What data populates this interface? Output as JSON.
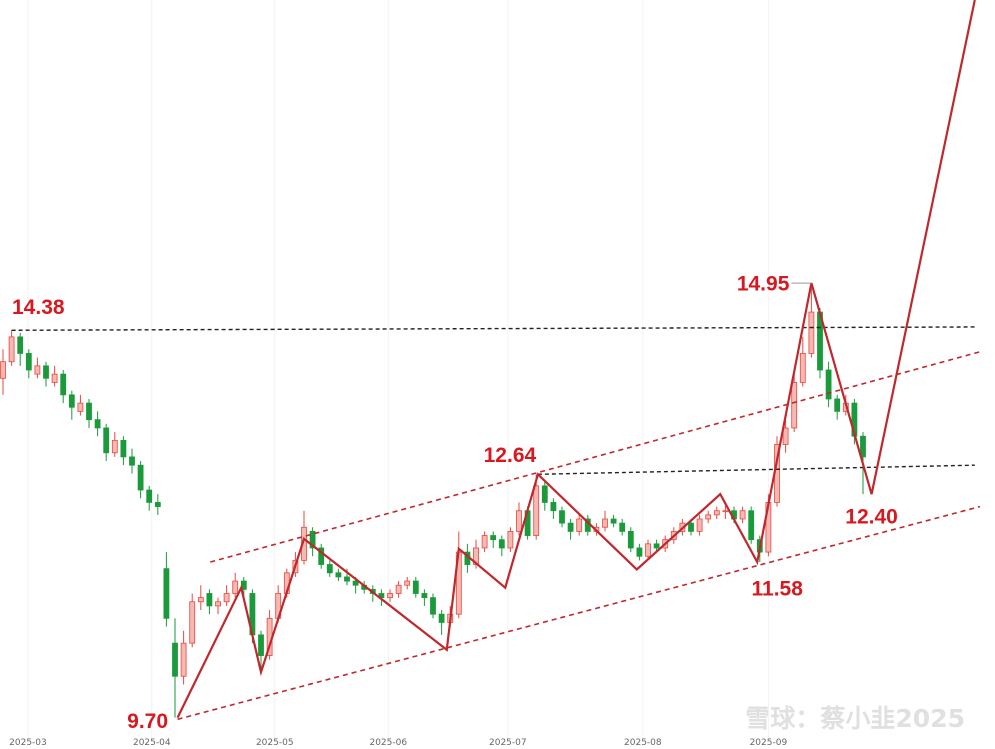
{
  "chart_data": {
    "type": "candlestick",
    "xlim": [
      -0.35,
      115.35
    ],
    "ylim": [
      9.43,
      18.37
    ],
    "xticks": [
      {
        "value": 2.9,
        "label": "2025-03"
      },
      {
        "value": 17.3,
        "label": "2025-04"
      },
      {
        "value": 31.6,
        "label": "2025-05"
      },
      {
        "value": 44.8,
        "label": "2025-06"
      },
      {
        "value": 58.7,
        "label": "2025-07"
      },
      {
        "value": 74.4,
        "label": "2025-08"
      },
      {
        "value": 89,
        "label": "2025-09"
      }
    ],
    "up_color": "#e8483f",
    "down_color": "#1a9a3a",
    "candles": [
      [
        13.8,
        14.15,
        13.6,
        14.0
      ],
      [
        14.0,
        14.38,
        13.95,
        14.3
      ],
      [
        14.3,
        14.35,
        13.95,
        14.1
      ],
      [
        14.1,
        14.15,
        13.8,
        13.9
      ],
      [
        13.85,
        14.05,
        13.8,
        13.95
      ],
      [
        13.95,
        14.0,
        13.7,
        13.8
      ],
      [
        13.75,
        13.95,
        13.7,
        13.85
      ],
      [
        13.85,
        13.9,
        13.5,
        13.6
      ],
      [
        13.6,
        13.65,
        13.3,
        13.45
      ],
      [
        13.4,
        13.6,
        13.35,
        13.5
      ],
      [
        13.5,
        13.55,
        13.2,
        13.3
      ],
      [
        13.3,
        13.4,
        13.1,
        13.2
      ],
      [
        13.2,
        13.25,
        12.8,
        12.9
      ],
      [
        12.9,
        13.15,
        12.85,
        13.05
      ],
      [
        13.05,
        13.1,
        12.75,
        12.85
      ],
      [
        12.85,
        12.95,
        12.65,
        12.75
      ],
      [
        12.75,
        12.8,
        12.35,
        12.45
      ],
      [
        12.45,
        12.5,
        12.2,
        12.3
      ],
      [
        12.3,
        12.4,
        12.15,
        12.25
      ],
      [
        11.5,
        11.7,
        10.8,
        10.9
      ],
      [
        10.6,
        10.9,
        9.7,
        10.2
      ],
      [
        10.2,
        10.75,
        10.1,
        10.6
      ],
      [
        10.6,
        11.2,
        10.55,
        11.1
      ],
      [
        11.1,
        11.3,
        11.0,
        11.15
      ],
      [
        11.2,
        11.25,
        10.95,
        11.05
      ],
      [
        11.05,
        11.15,
        10.95,
        11.1
      ],
      [
        11.1,
        11.3,
        11.05,
        11.2
      ],
      [
        11.2,
        11.45,
        11.15,
        11.35
      ],
      [
        11.35,
        11.4,
        11.15,
        11.25
      ],
      [
        11.2,
        11.25,
        10.6,
        10.7
      ],
      [
        10.7,
        10.75,
        10.3,
        10.45
      ],
      [
        10.45,
        11.0,
        10.4,
        10.9
      ],
      [
        10.9,
        11.3,
        10.85,
        11.2
      ],
      [
        11.2,
        11.5,
        11.15,
        11.45
      ],
      [
        11.45,
        11.7,
        11.4,
        11.6
      ],
      [
        11.6,
        12.2,
        11.55,
        12.0
      ],
      [
        11.95,
        12.0,
        11.65,
        11.75
      ],
      [
        11.75,
        11.8,
        11.5,
        11.55
      ],
      [
        11.55,
        11.6,
        11.4,
        11.45
      ],
      [
        11.45,
        11.5,
        11.35,
        11.4
      ],
      [
        11.4,
        11.5,
        11.3,
        11.35
      ],
      [
        11.35,
        11.4,
        11.2,
        11.3
      ],
      [
        11.3,
        11.35,
        11.2,
        11.25
      ],
      [
        11.25,
        11.3,
        11.1,
        11.2
      ],
      [
        11.2,
        11.25,
        11.05,
        11.15
      ],
      [
        11.15,
        11.25,
        11.1,
        11.2
      ],
      [
        11.2,
        11.35,
        11.15,
        11.3
      ],
      [
        11.3,
        11.4,
        11.25,
        11.35
      ],
      [
        11.35,
        11.4,
        11.15,
        11.2
      ],
      [
        11.2,
        11.25,
        11.05,
        11.15
      ],
      [
        11.15,
        11.2,
        10.9,
        10.95
      ],
      [
        10.95,
        11.0,
        10.7,
        10.85
      ],
      [
        10.85,
        11.05,
        10.8,
        10.95
      ],
      [
        10.95,
        11.95,
        10.9,
        11.7
      ],
      [
        11.7,
        11.8,
        11.45,
        11.55
      ],
      [
        11.55,
        11.85,
        11.5,
        11.75
      ],
      [
        11.75,
        11.95,
        11.7,
        11.9
      ],
      [
        11.9,
        11.95,
        11.75,
        11.85
      ],
      [
        11.85,
        11.9,
        11.65,
        11.75
      ],
      [
        11.75,
        12.0,
        11.7,
        11.95
      ],
      [
        11.95,
        12.3,
        11.9,
        12.2
      ],
      [
        12.2,
        12.25,
        11.85,
        11.9
      ],
      [
        11.9,
        12.64,
        11.85,
        12.5
      ],
      [
        12.5,
        12.55,
        12.2,
        12.3
      ],
      [
        12.3,
        12.35,
        12.1,
        12.2
      ],
      [
        12.2,
        12.25,
        12.0,
        12.05
      ],
      [
        12.05,
        12.1,
        11.85,
        11.95
      ],
      [
        11.95,
        12.15,
        11.9,
        12.1
      ],
      [
        12.1,
        12.15,
        11.9,
        11.95
      ],
      [
        11.95,
        12.05,
        11.9,
        12.0
      ],
      [
        12.0,
        12.2,
        11.95,
        12.1
      ],
      [
        12.1,
        12.15,
        12.0,
        12.05
      ],
      [
        12.05,
        12.1,
        11.9,
        11.95
      ],
      [
        11.95,
        12.0,
        11.7,
        11.75
      ],
      [
        11.75,
        11.8,
        11.6,
        11.65
      ],
      [
        11.65,
        11.85,
        11.6,
        11.8
      ],
      [
        11.8,
        11.85,
        11.7,
        11.75
      ],
      [
        11.75,
        11.9,
        11.7,
        11.85
      ],
      [
        11.85,
        12.0,
        11.8,
        11.95
      ],
      [
        11.95,
        12.1,
        11.9,
        12.05
      ],
      [
        12.05,
        12.1,
        11.9,
        11.95
      ],
      [
        11.95,
        12.15,
        11.9,
        12.1
      ],
      [
        12.1,
        12.2,
        12.05,
        12.15
      ],
      [
        12.15,
        12.25,
        12.1,
        12.2
      ],
      [
        12.2,
        12.3,
        12.1,
        12.2
      ],
      [
        12.2,
        12.25,
        12.05,
        12.1
      ],
      [
        12.1,
        12.25,
        12.05,
        12.2
      ],
      [
        12.2,
        12.25,
        11.8,
        11.85
      ],
      [
        11.85,
        11.9,
        11.58,
        11.7
      ],
      [
        11.7,
        12.4,
        11.65,
        12.3
      ],
      [
        12.3,
        13.1,
        12.25,
        13.0
      ],
      [
        13.0,
        13.3,
        12.9,
        13.2
      ],
      [
        13.2,
        13.85,
        13.15,
        13.75
      ],
      [
        13.75,
        14.3,
        13.7,
        14.1
      ],
      [
        14.1,
        14.95,
        14.05,
        14.6
      ],
      [
        14.6,
        14.65,
        13.8,
        13.9
      ],
      [
        13.9,
        14.0,
        13.45,
        13.55
      ],
      [
        13.55,
        13.6,
        13.3,
        13.4
      ],
      [
        13.4,
        13.6,
        13.35,
        13.5
      ],
      [
        13.5,
        13.55,
        13.0,
        13.1
      ],
      [
        13.1,
        13.15,
        12.4,
        12.85
      ]
    ],
    "zigzag": {
      "color": "#c0282d",
      "x": [
        20.3,
        27.7,
        30,
        35,
        51.6,
        53,
        58.4,
        62.2,
        73.7,
        83.4,
        87.7,
        94,
        101,
        113
      ],
      "values": [
        9.7,
        11.27,
        10.25,
        11.86,
        10.52,
        11.74,
        11.27,
        12.64,
        11.49,
        12.4,
        11.58,
        14.95,
        12.4,
        18.37
      ]
    },
    "channel": [
      {
        "x": [
          24.1,
          113.6
        ],
        "values": [
          11.58,
          14.12
        ]
      },
      {
        "x": [
          20.3,
          113.6
        ],
        "values": [
          9.68,
          12.25
        ]
      }
    ],
    "levels": [
      {
        "x": [
          1,
          113
        ],
        "values": [
          14.38,
          14.42
        ]
      },
      {
        "x": [
          62.2,
          113
        ],
        "values": [
          12.64,
          12.75
        ]
      }
    ],
    "price_labels": [
      {
        "value": 14.38,
        "label": "14.38"
      },
      {
        "value": 14.95,
        "label": "14.95"
      },
      {
        "value": 12.64,
        "label": "12.64"
      },
      {
        "value": 12.4,
        "label": "12.40"
      },
      {
        "value": 11.58,
        "label": "11.58"
      },
      {
        "value": 9.7,
        "label": "9.70"
      }
    ],
    "watermark": "雪球：蔡小韭2025"
  }
}
